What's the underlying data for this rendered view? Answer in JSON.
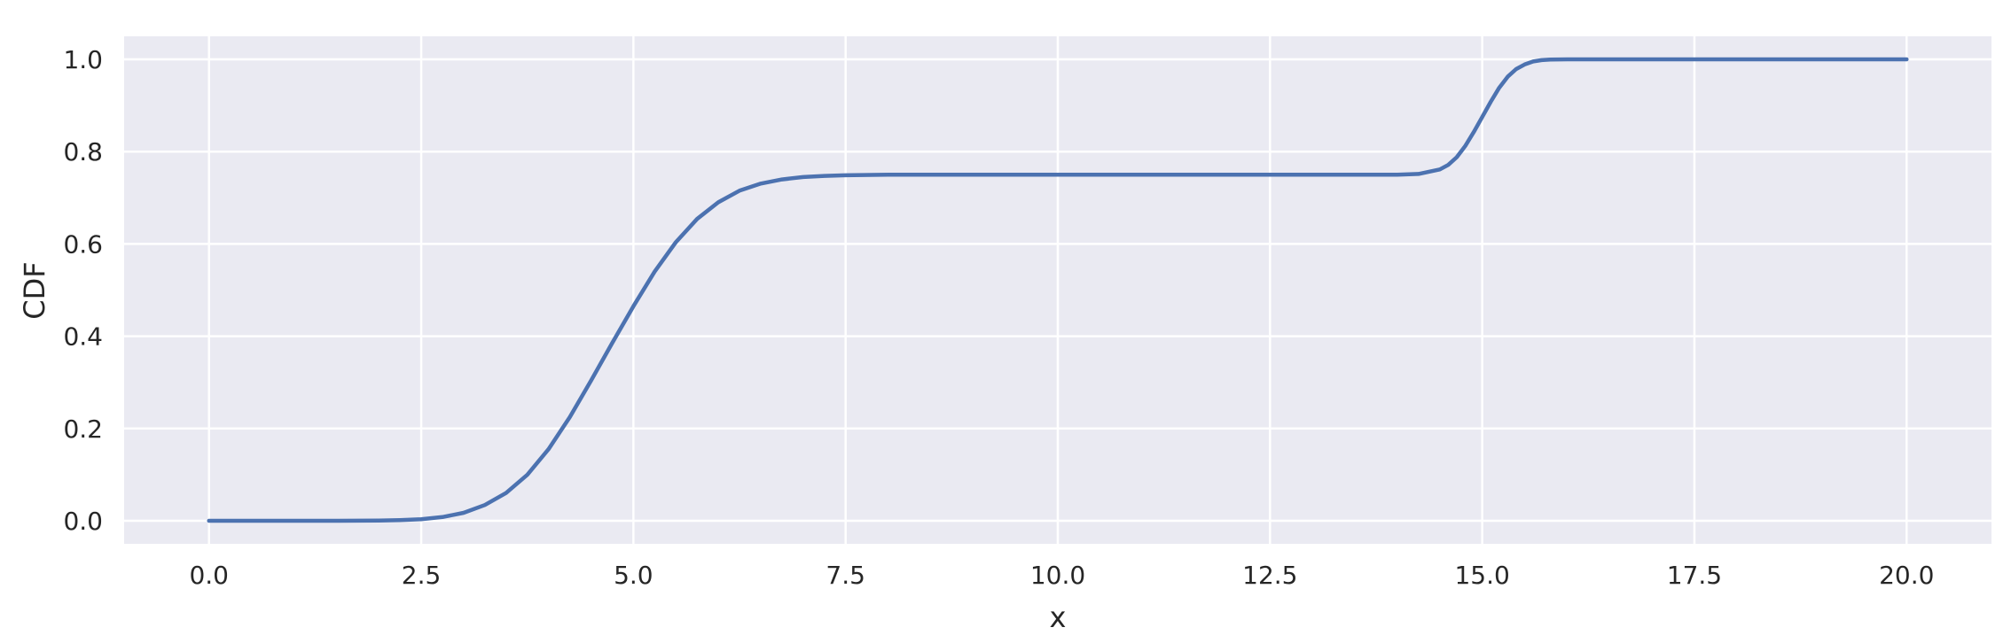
{
  "chart_data": {
    "type": "line",
    "xlabel": "x",
    "ylabel": "CDF",
    "xlim": [
      -1.0,
      21.0
    ],
    "ylim": [
      -0.05,
      1.05
    ],
    "xticks": [
      "0.0",
      "2.5",
      "5.0",
      "7.5",
      "10.0",
      "12.5",
      "15.0",
      "17.5",
      "20.0"
    ],
    "yticks": [
      "0.0",
      "0.2",
      "0.4",
      "0.6",
      "0.8",
      "1.0"
    ],
    "grid": true,
    "colors": {
      "background": "#eaeaf2",
      "grid": "#ffffff",
      "line": "#4c72b0"
    },
    "series": [
      {
        "x": [
          0.0,
          0.5,
          1.0,
          1.5,
          2.0,
          2.25,
          2.5,
          2.75,
          3.0,
          3.25,
          3.5,
          3.75,
          4.0,
          4.25,
          4.5,
          4.75,
          5.0,
          5.25,
          5.5,
          5.75,
          6.0,
          6.25,
          6.5,
          6.75,
          7.0,
          7.25,
          7.5,
          8.0,
          8.5,
          9.0,
          10.0,
          11.0,
          12.0,
          13.0,
          14.0,
          14.25,
          14.5,
          14.6,
          14.7,
          14.8,
          14.9,
          15.0,
          15.1,
          15.2,
          15.3,
          15.4,
          15.5,
          15.6,
          15.7,
          15.8,
          16.0,
          16.5,
          17.0,
          18.0,
          19.0,
          20.0
        ],
        "values": [
          0.0,
          0.0,
          0.0,
          0.0,
          0.0004,
          0.0014,
          0.0034,
          0.0079,
          0.0171,
          0.034,
          0.0601,
          0.0995,
          0.155,
          0.2245,
          0.3035,
          0.385,
          0.465,
          0.54,
          0.6037,
          0.6542,
          0.6903,
          0.7154,
          0.7307,
          0.7398,
          0.745,
          0.7475,
          0.7488,
          0.75,
          0.75,
          0.75,
          0.75,
          0.75,
          0.75,
          0.75,
          0.75,
          0.7517,
          0.7614,
          0.7712,
          0.7879,
          0.8124,
          0.8424,
          0.875,
          0.908,
          0.9385,
          0.9625,
          0.979,
          0.989,
          0.9955,
          0.9984,
          0.9995,
          1.0,
          1.0,
          1.0,
          1.0,
          1.0,
          1.0
        ]
      }
    ]
  }
}
